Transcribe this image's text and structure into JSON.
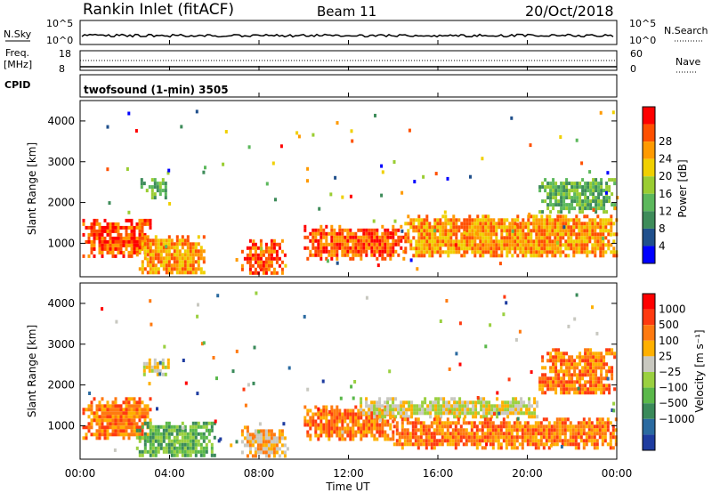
{
  "header": {
    "title": "Rankin Inlet (fitACF)",
    "beam": "Beam 11",
    "date": "20/Oct/2018"
  },
  "noise_panel": {
    "left_label": "N.Sky",
    "left_ticks": [
      "10^5",
      "10^0"
    ],
    "right_ticks": [
      "10^5",
      "10^0"
    ],
    "right_label": "N.Search"
  },
  "freq_panel": {
    "left_label_1": "Freq.",
    "left_label_2": "[MHz]",
    "left_ticks": [
      "18",
      "8"
    ],
    "right_ticks": [
      "60",
      "0"
    ],
    "right_label": "Nave"
  },
  "cpid_label": "CPID",
  "program": "twofsound (1-min) 3505",
  "colors": {
    "power_scale": [
      "#0000ff",
      "#20508c",
      "#3e8c5a",
      "#5cb85c",
      "#9acd32",
      "#f0d000",
      "#ff9a00",
      "#ff5000",
      "#ff0000"
    ],
    "velocity_scale": [
      "#1e3ca0",
      "#2a6aa0",
      "#3a8a5a",
      "#5ab84a",
      "#9ad040",
      "#c8c8c0",
      "#ffb000",
      "#ff7a10",
      "#ff3a10",
      "#ff0000"
    ],
    "noise_trace": "#000000"
  },
  "chart_data": [
    {
      "type": "heatmap",
      "name": "power",
      "ylabel": "Slant Range [km]",
      "yticks": [
        "1000",
        "2000",
        "3000",
        "4000"
      ],
      "ylim": [
        180,
        4500
      ],
      "xticks": [
        "00:00",
        "04:00",
        "08:00",
        "12:00",
        "16:00",
        "20:00",
        "00:00"
      ],
      "xlim_hours": [
        0,
        24
      ],
      "colorbar_label": "Power [dB]",
      "colorbar_ticks": [
        "4",
        "8",
        "12",
        "16",
        "20",
        "24",
        "28"
      ],
      "regions": [
        {
          "t0": 0.1,
          "t1": 3.2,
          "r0": 700,
          "r1": 1600,
          "level": 7
        },
        {
          "t0": 2.5,
          "t1": 5.6,
          "r0": 250,
          "r1": 1200,
          "level": 6
        },
        {
          "t0": 7.2,
          "t1": 9.2,
          "r0": 250,
          "r1": 1100,
          "level": 7
        },
        {
          "t0": 10.0,
          "t1": 14.5,
          "r0": 650,
          "r1": 1450,
          "level": 7
        },
        {
          "t0": 14.5,
          "t1": 24.0,
          "r0": 700,
          "r1": 1700,
          "level": 6
        },
        {
          "t0": 2.7,
          "t1": 4.0,
          "r0": 2150,
          "r1": 2600,
          "level": 3
        },
        {
          "t0": 20.5,
          "t1": 23.9,
          "r0": 1800,
          "r1": 2600,
          "level": 3
        }
      ]
    },
    {
      "type": "heatmap",
      "name": "velocity",
      "ylabel": "Slant Range [km]",
      "yticks": [
        "1000",
        "2000",
        "3000",
        "4000"
      ],
      "ylim": [
        180,
        4500
      ],
      "xticks": [
        "00:00",
        "04:00",
        "08:00",
        "12:00",
        "16:00",
        "20:00",
        "00:00"
      ],
      "xlim_hours": [
        0,
        24
      ],
      "xlabel": "Time UT",
      "colorbar_label": "Velocity [m s⁻¹]",
      "colorbar_ticks": [
        "1000",
        "500",
        "100",
        "25",
        "−25",
        "−100",
        "−500",
        "−1000"
      ],
      "regions": [
        {
          "t0": 0.1,
          "t1": 3.2,
          "r0": 700,
          "r1": 1700,
          "level": 7
        },
        {
          "t0": 2.5,
          "t1": 6.0,
          "r0": 250,
          "r1": 1100,
          "level": 3
        },
        {
          "t0": 7.2,
          "t1": 9.3,
          "r0": 250,
          "r1": 1000,
          "level": 6
        },
        {
          "t0": 10.0,
          "t1": 14.0,
          "r0": 700,
          "r1": 1500,
          "level": 7
        },
        {
          "t0": 12.5,
          "t1": 20.5,
          "r0": 1200,
          "r1": 1700,
          "level": 5
        },
        {
          "t0": 14.0,
          "t1": 24.0,
          "r0": 500,
          "r1": 1200,
          "level": 7
        },
        {
          "t0": 2.7,
          "t1": 4.0,
          "r0": 2300,
          "r1": 2650,
          "level": 5
        },
        {
          "t0": 20.5,
          "t1": 23.9,
          "r0": 1800,
          "r1": 2900,
          "level": 7
        }
      ]
    }
  ]
}
